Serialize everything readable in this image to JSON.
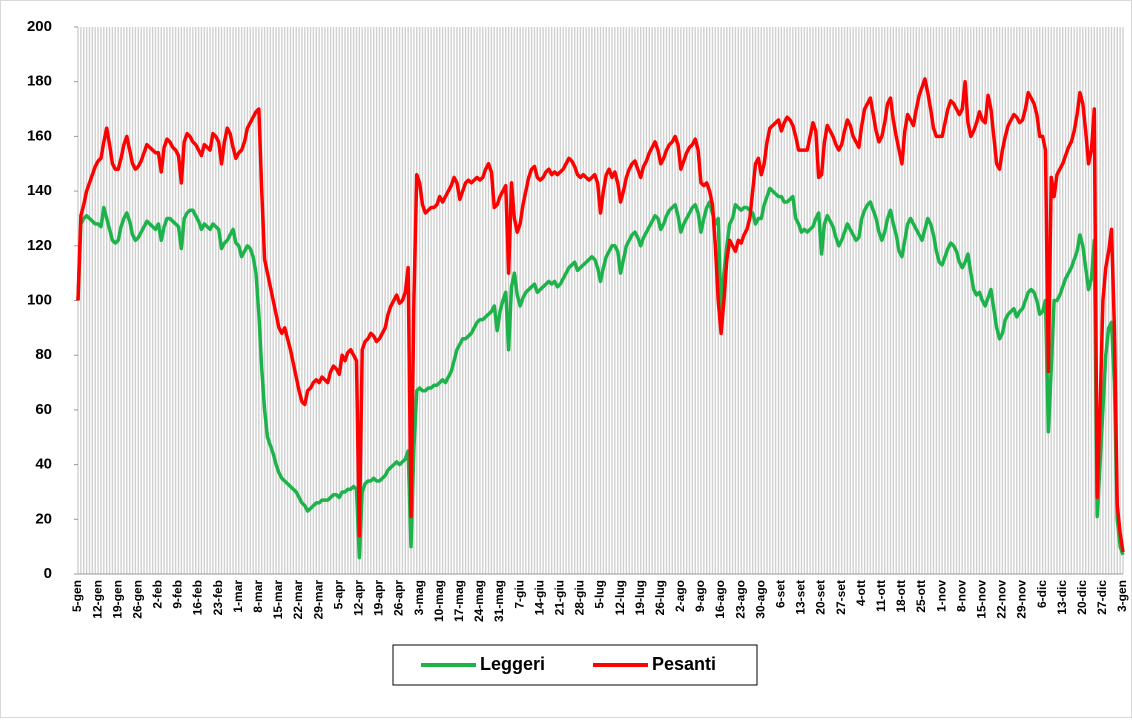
{
  "chart_data": {
    "type": "line",
    "categories": [
      "5-gen",
      null,
      null,
      null,
      null,
      null,
      null,
      "12-gen",
      null,
      null,
      null,
      null,
      null,
      null,
      "19-gen",
      null,
      null,
      null,
      null,
      null,
      null,
      "26-gen",
      null,
      null,
      null,
      null,
      null,
      null,
      "2-feb",
      null,
      null,
      null,
      null,
      null,
      null,
      "9-feb",
      null,
      null,
      null,
      null,
      null,
      null,
      "16-feb",
      null,
      null,
      null,
      null,
      null,
      null,
      "23-feb",
      null,
      null,
      null,
      null,
      null,
      null,
      "1-mar",
      null,
      null,
      null,
      null,
      null,
      null,
      "8-mar",
      null,
      null,
      null,
      null,
      null,
      null,
      "15-mar",
      null,
      null,
      null,
      null,
      null,
      null,
      "22-mar",
      null,
      null,
      null,
      null,
      null,
      null,
      "29-mar",
      null,
      null,
      null,
      null,
      null,
      null,
      "5-apr",
      null,
      null,
      null,
      null,
      null,
      null,
      "12-apr",
      null,
      null,
      null,
      null,
      null,
      null,
      "19-apr",
      null,
      null,
      null,
      null,
      null,
      null,
      "26-apr",
      null,
      null,
      null,
      null,
      null,
      null,
      "3-mag",
      null,
      null,
      null,
      null,
      null,
      null,
      "10-mag",
      null,
      null,
      null,
      null,
      null,
      null,
      "17-mag",
      null,
      null,
      null,
      null,
      null,
      null,
      "24-mag",
      null,
      null,
      null,
      null,
      null,
      null,
      "31-mag",
      null,
      null,
      null,
      null,
      null,
      null,
      "7-giu",
      null,
      null,
      null,
      null,
      null,
      null,
      "14-giu",
      null,
      null,
      null,
      null,
      null,
      null,
      "21-giu",
      null,
      null,
      null,
      null,
      null,
      null,
      "28-giu",
      null,
      null,
      null,
      null,
      null,
      null,
      "5-lug",
      null,
      null,
      null,
      null,
      null,
      null,
      "12-lug",
      null,
      null,
      null,
      null,
      null,
      null,
      "19-lug",
      null,
      null,
      null,
      null,
      null,
      null,
      "26-lug",
      null,
      null,
      null,
      null,
      null,
      null,
      "2-ago",
      null,
      null,
      null,
      null,
      null,
      null,
      "9-ago",
      null,
      null,
      null,
      null,
      null,
      null,
      "16-ago",
      null,
      null,
      null,
      null,
      null,
      null,
      "23-ago",
      null,
      null,
      null,
      null,
      null,
      null,
      "30-ago",
      null,
      null,
      null,
      null,
      null,
      null,
      "6-set",
      null,
      null,
      null,
      null,
      null,
      null,
      "13-set",
      null,
      null,
      null,
      null,
      null,
      null,
      "20-set",
      null,
      null,
      null,
      null,
      null,
      null,
      "27-set",
      null,
      null,
      null,
      null,
      null,
      null,
      "4-ott",
      null,
      null,
      null,
      null,
      null,
      null,
      "11-ott",
      null,
      null,
      null,
      null,
      null,
      null,
      "18-ott",
      null,
      null,
      null,
      null,
      null,
      null,
      "25-ott",
      null,
      null,
      null,
      null,
      null,
      null,
      "1-nov",
      null,
      null,
      null,
      null,
      null,
      null,
      "8-nov",
      null,
      null,
      null,
      null,
      null,
      null,
      "15-nov",
      null,
      null,
      null,
      null,
      null,
      null,
      "22-nov",
      null,
      null,
      null,
      null,
      null,
      null,
      "29-nov",
      null,
      null,
      null,
      null,
      null,
      null,
      "6-dic",
      null,
      null,
      null,
      null,
      null,
      null,
      "13-dic",
      null,
      null,
      null,
      null,
      null,
      null,
      "20-dic",
      null,
      null,
      null,
      null,
      null,
      null,
      "27-dic",
      null,
      null,
      null,
      null,
      null,
      null,
      "3-gen"
    ],
    "series": [
      {
        "name": "Leggeri",
        "color": "#1db34b",
        "values": [
          100,
          128,
          130,
          131,
          130,
          129,
          128,
          128,
          127,
          134,
          130,
          126,
          122,
          121,
          122,
          127,
          130,
          132,
          129,
          124,
          122,
          123,
          125,
          127,
          129,
          128,
          127,
          126,
          128,
          122,
          127,
          130,
          130,
          129,
          128,
          127,
          119,
          130,
          132,
          133,
          133,
          131,
          129,
          126,
          128,
          127,
          126,
          128,
          127,
          126,
          119,
          121,
          122,
          124,
          126,
          121,
          120,
          116,
          118,
          120,
          119,
          116,
          110,
          95,
          75,
          60,
          50,
          47,
          44,
          40,
          37,
          35,
          34,
          33,
          32,
          31,
          30,
          28,
          26,
          25,
          23,
          24,
          25,
          26,
          26,
          27,
          27,
          27,
          28,
          29,
          29,
          28,
          30,
          30,
          31,
          31,
          32,
          31,
          6,
          30,
          33,
          34,
          34,
          35,
          34,
          34,
          35,
          36,
          38,
          39,
          40,
          41,
          40,
          41,
          42,
          45,
          10,
          46,
          67,
          68,
          67,
          67,
          68,
          68,
          69,
          69,
          70,
          71,
          70,
          72,
          74,
          78,
          82,
          84,
          86,
          86,
          87,
          88,
          90,
          92,
          93,
          93,
          94,
          95,
          96,
          98,
          89,
          96,
          100,
          103,
          82,
          105,
          110,
          102,
          98,
          101,
          103,
          104,
          105,
          106,
          103,
          104,
          105,
          106,
          107,
          106,
          107,
          105,
          106,
          108,
          110,
          112,
          113,
          114,
          111,
          112,
          113,
          114,
          115,
          116,
          115,
          112,
          107,
          112,
          116,
          118,
          120,
          120,
          118,
          110,
          115,
          120,
          122,
          124,
          125,
          123,
          120,
          123,
          125,
          127,
          129,
          131,
          130,
          126,
          128,
          131,
          133,
          134,
          135,
          131,
          125,
          128,
          130,
          132,
          134,
          135,
          132,
          125,
          130,
          134,
          136,
          132,
          128,
          130,
          95,
          110,
          120,
          128,
          130,
          135,
          134,
          133,
          134,
          134,
          133,
          132,
          128,
          130,
          130,
          135,
          138,
          141,
          140,
          139,
          138,
          138,
          136,
          136,
          137,
          138,
          130,
          128,
          125,
          126,
          125,
          126,
          127,
          130,
          132,
          117,
          128,
          131,
          129,
          127,
          123,
          120,
          122,
          125,
          128,
          126,
          124,
          122,
          123,
          130,
          133,
          135,
          136,
          133,
          130,
          125,
          122,
          125,
          130,
          133,
          128,
          124,
          118,
          116,
          122,
          128,
          130,
          128,
          126,
          124,
          122,
          126,
          130,
          128,
          124,
          118,
          114,
          113,
          116,
          119,
          121,
          120,
          118,
          114,
          112,
          114,
          117,
          110,
          104,
          102,
          103,
          100,
          98,
          101,
          104,
          97,
          90,
          86,
          88,
          93,
          95,
          96,
          97,
          94,
          96,
          97,
          100,
          103,
          104,
          103,
          100,
          95,
          96,
          100,
          52,
          75,
          100,
          100,
          102,
          105,
          108,
          110,
          112,
          115,
          118,
          124,
          120,
          112,
          104,
          108,
          122,
          21,
          40,
          60,
          80,
          90,
          92,
          70,
          20,
          10,
          7
        ]
      },
      {
        "name": "Pesanti",
        "color": "#ff0000",
        "values": [
          100,
          131,
          135,
          140,
          143,
          146,
          149,
          151,
          152,
          158,
          163,
          157,
          150,
          148,
          148,
          152,
          157,
          160,
          155,
          150,
          148,
          149,
          151,
          154,
          157,
          156,
          155,
          154,
          154,
          147,
          156,
          159,
          158,
          156,
          155,
          153,
          143,
          158,
          161,
          160,
          158,
          157,
          155,
          153,
          157,
          156,
          155,
          161,
          160,
          158,
          150,
          158,
          163,
          161,
          156,
          152,
          154,
          155,
          158,
          163,
          165,
          167,
          169,
          170,
          140,
          115,
          110,
          105,
          100,
          95,
          90,
          88,
          90,
          86,
          82,
          77,
          72,
          67,
          63,
          62,
          67,
          68,
          70,
          71,
          70,
          72,
          71,
          70,
          74,
          76,
          75,
          73,
          80,
          78,
          81,
          82,
          80,
          78,
          14,
          82,
          85,
          86,
          88,
          87,
          85,
          86,
          88,
          90,
          95,
          98,
          100,
          102,
          99,
          100,
          103,
          112,
          21,
          100,
          146,
          143,
          135,
          132,
          133,
          134,
          134,
          135,
          138,
          136,
          138,
          140,
          142,
          145,
          143,
          137,
          140,
          143,
          144,
          143,
          144,
          145,
          144,
          145,
          148,
          150,
          147,
          134,
          135,
          138,
          140,
          142,
          110,
          143,
          130,
          125,
          128,
          135,
          140,
          145,
          148,
          149,
          145,
          144,
          145,
          147,
          148,
          146,
          147,
          146,
          147,
          148,
          150,
          152,
          151,
          149,
          146,
          145,
          146,
          145,
          144,
          145,
          146,
          143,
          132,
          140,
          146,
          148,
          145,
          147,
          143,
          136,
          140,
          145,
          148,
          150,
          151,
          148,
          145,
          149,
          151,
          154,
          156,
          158,
          155,
          150,
          152,
          155,
          157,
          158,
          160,
          157,
          148,
          151,
          154,
          156,
          157,
          159,
          155,
          143,
          142,
          143,
          140,
          135,
          120,
          100,
          88,
          100,
          115,
          122,
          120,
          118,
          122,
          121,
          124,
          126,
          130,
          140,
          150,
          152,
          146,
          150,
          158,
          163,
          164,
          165,
          166,
          162,
          165,
          167,
          166,
          164,
          160,
          155,
          155,
          155,
          155,
          160,
          165,
          162,
          145,
          146,
          158,
          164,
          162,
          160,
          157,
          155,
          157,
          162,
          166,
          164,
          160,
          158,
          156,
          164,
          170,
          172,
          174,
          168,
          162,
          158,
          160,
          165,
          172,
          174,
          166,
          160,
          155,
          150,
          162,
          168,
          166,
          164,
          170,
          175,
          178,
          181,
          176,
          170,
          163,
          160,
          160,
          160,
          165,
          170,
          173,
          172,
          170,
          168,
          170,
          180,
          165,
          160,
          162,
          165,
          169,
          166,
          165,
          175,
          170,
          160,
          150,
          148,
          155,
          160,
          164,
          166,
          168,
          167,
          165,
          166,
          170,
          176,
          174,
          172,
          168,
          160,
          160,
          155,
          74,
          145,
          138,
          146,
          148,
          150,
          153,
          156,
          158,
          162,
          168,
          176,
          172,
          162,
          150,
          155,
          170,
          28,
          60,
          100,
          112,
          118,
          126,
          90,
          25,
          15,
          8
        ]
      }
    ],
    "ylim": [
      0,
      200
    ],
    "yticks": [
      0,
      20,
      40,
      60,
      80,
      100,
      120,
      140,
      160,
      180,
      200
    ],
    "grid": false,
    "legend": "bottom"
  }
}
